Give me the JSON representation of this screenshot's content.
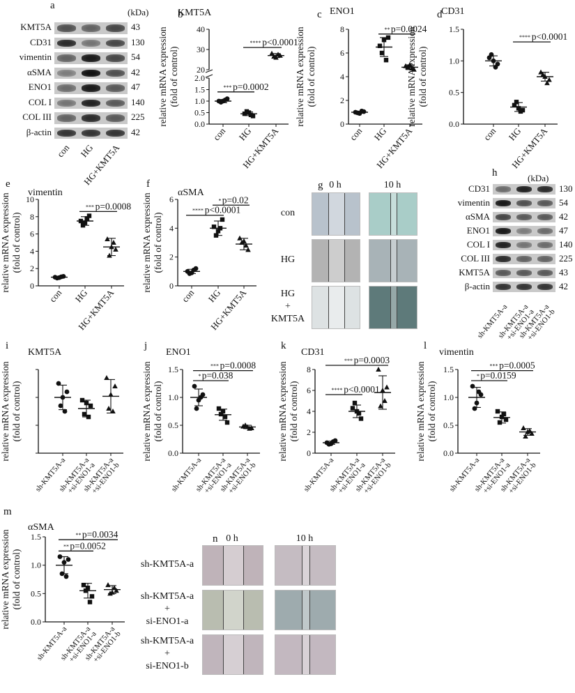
{
  "blot_a": {
    "letter": "a",
    "unit": "(kDa)",
    "lanes": [
      "con",
      "HG",
      "HG+KMT5A"
    ],
    "rows": [
      {
        "label": "KMT5A",
        "kda": "43",
        "lane_intensity": [
          0.55,
          0.45,
          0.6
        ]
      },
      {
        "label": "CD31",
        "kda": "130",
        "lane_intensity": [
          0.75,
          0.35,
          0.6
        ]
      },
      {
        "label": "vimentin",
        "kda": "54",
        "lane_intensity": [
          0.45,
          0.85,
          0.6
        ]
      },
      {
        "label": "αSMA",
        "kda": "42",
        "lane_intensity": [
          0.3,
          0.9,
          0.55
        ]
      },
      {
        "label": "ENO1",
        "kda": "47",
        "lane_intensity": [
          0.4,
          0.85,
          0.5
        ]
      },
      {
        "label": "COL I",
        "kda": "140",
        "lane_intensity": [
          0.35,
          0.8,
          0.5
        ]
      },
      {
        "label": "COL III",
        "kda": "225",
        "lane_intensity": [
          0.45,
          0.75,
          0.5
        ]
      },
      {
        "label": "β-actin",
        "kda": "42",
        "lane_intensity": [
          0.7,
          0.7,
          0.7
        ]
      }
    ]
  },
  "blot_h": {
    "letter": "h",
    "unit": "(kDa)",
    "lanes": [
      "sh-KMT5A-a",
      "sh-KMT5A-a +si-ENO1-a",
      "sh-KMT5A-a +si-ENO1-b"
    ],
    "rows": [
      {
        "label": "CD31",
        "kda": "130",
        "lane_intensity": [
          0.4,
          0.8,
          0.75
        ]
      },
      {
        "label": "vimentin",
        "kda": "54",
        "lane_intensity": [
          0.85,
          0.55,
          0.5
        ]
      },
      {
        "label": "αSMA",
        "kda": "42",
        "lane_intensity": [
          0.6,
          0.5,
          0.5
        ]
      },
      {
        "label": "ENO1",
        "kda": "47",
        "lane_intensity": [
          0.85,
          0.3,
          0.4
        ]
      },
      {
        "label": "COL I",
        "kda": "140",
        "lane_intensity": [
          0.8,
          0.35,
          0.4
        ]
      },
      {
        "label": "COL III",
        "kda": "225",
        "lane_intensity": [
          0.75,
          0.45,
          0.45
        ]
      },
      {
        "label": "KMT5A",
        "kda": "43",
        "lane_intensity": [
          0.5,
          0.5,
          0.5
        ]
      },
      {
        "label": "β-actin",
        "kda": "42",
        "lane_intensity": [
          0.7,
          0.7,
          0.7
        ]
      }
    ]
  },
  "scratch_g": {
    "letter": "g",
    "col_labels": [
      "0 h",
      "10 h"
    ],
    "row_labels": [
      "con",
      "HG",
      "HG\n+\nKMT5A"
    ]
  },
  "scratch_n": {
    "letter": "n",
    "col_labels": [
      "0 h",
      "10 h"
    ],
    "row_labels": [
      "sh-KMT5A-a",
      "sh-KMT5A-a\n+\nsi-ENO1-a",
      "sh-KMT5A-a\n+\nsi-ENO1-b"
    ]
  },
  "chart_data": [
    {
      "id": "b",
      "type": "scatter",
      "title": "KMT5A",
      "ylabel": "relative mRNA expression\n(fold of control)",
      "categories": [
        "con",
        "HG",
        "HG+KMT5A"
      ],
      "broken_axis": true,
      "lower_ylim": [
        0,
        2
      ],
      "lower_ticks": [
        "0.0",
        "0.5",
        "1.0",
        "1.5",
        "2.0"
      ],
      "upper_ylim": [
        20,
        40
      ],
      "upper_ticks": [
        "20",
        "30",
        "40"
      ],
      "series": [
        {
          "marker": "circle",
          "points": [
            1.0,
            1.1,
            0.95,
            1.05,
            1.0
          ],
          "mean": 1.0,
          "sd": 0.07
        },
        {
          "marker": "square",
          "points": [
            0.45,
            0.35,
            0.55,
            0.4,
            0.5
          ],
          "mean": 0.45,
          "sd": 0.08
        },
        {
          "marker": "triangle",
          "points": [
            28.0,
            27.0,
            26.5,
            27.5,
            26.0
          ],
          "mean": 27.0,
          "sd": 1.0
        }
      ],
      "annotations": [
        {
          "from": 0,
          "to": 1,
          "y": 1.4,
          "text": "p=0.0002",
          "stars": "***"
        },
        {
          "from": 1,
          "to": 2,
          "y": 31,
          "text": "p<0.0001",
          "stars": "****"
        }
      ]
    },
    {
      "id": "c",
      "type": "scatter",
      "title": "ENO1",
      "ylabel": "relative mRNA expression\n(fold of control)",
      "categories": [
        "con",
        "HG",
        "HG+KMT5A"
      ],
      "ylim": [
        0,
        8
      ],
      "ticks": [
        "0",
        "2",
        "4",
        "6",
        "8"
      ],
      "series": [
        {
          "marker": "circle",
          "points": [
            1.0,
            1.05,
            0.95,
            1.1,
            0.9
          ],
          "mean": 1.0,
          "sd": 0.08
        },
        {
          "marker": "square",
          "points": [
            6.6,
            7.3,
            6.0,
            5.4,
            7.1
          ],
          "mean": 6.5,
          "sd": 0.8
        },
        {
          "marker": "triangle",
          "points": [
            4.9,
            4.6,
            4.8,
            4.7,
            5.0
          ],
          "mean": 4.8,
          "sd": 0.2
        }
      ],
      "annotations": [
        {
          "from": 1,
          "to": 2,
          "y": 7.6,
          "text": "p=0.0024",
          "stars": "**"
        }
      ]
    },
    {
      "id": "d",
      "type": "scatter",
      "title": "CD31",
      "ylabel": "relative mRNA expression\n(fold of control)",
      "categories": [
        "con",
        "HG",
        "HG+KMT5A"
      ],
      "ylim": [
        0,
        1.5
      ],
      "ticks": [
        "0.0",
        "0.5",
        "1.0",
        "1.5"
      ],
      "series": [
        {
          "marker": "circle",
          "points": [
            1.05,
            0.95,
            1.1,
            0.9,
            1.0
          ],
          "mean": 1.0,
          "sd": 0.08
        },
        {
          "marker": "square",
          "points": [
            0.3,
            0.22,
            0.35,
            0.2,
            0.25
          ],
          "mean": 0.27,
          "sd": 0.07
        },
        {
          "marker": "triangle",
          "points": [
            0.82,
            0.7,
            0.78,
            0.65,
            0.75
          ],
          "mean": 0.75,
          "sd": 0.07
        }
      ],
      "annotations": [
        {
          "from": 1,
          "to": 2,
          "y": 1.3,
          "text": "p<0.0001",
          "stars": "****"
        }
      ]
    },
    {
      "id": "e",
      "type": "scatter",
      "title": "vimentin",
      "ylabel": "relative mRNA expression\n(fold of control)",
      "categories": [
        "con",
        "HG",
        "HG+KMT5A"
      ],
      "ylim": [
        0,
        10
      ],
      "ticks": [
        "0",
        "2",
        "4",
        "6",
        "8",
        "10"
      ],
      "series": [
        {
          "marker": "circle",
          "points": [
            1.0,
            1.1,
            0.9,
            1.05,
            0.95
          ],
          "mean": 1.0,
          "sd": 0.1
        },
        {
          "marker": "square",
          "points": [
            7.5,
            8.1,
            7.0,
            7.8,
            7.3
          ],
          "mean": 7.5,
          "sd": 0.5
        },
        {
          "marker": "triangle",
          "points": [
            5.4,
            4.2,
            3.5,
            5.0,
            4.5
          ],
          "mean": 4.5,
          "sd": 1.0
        }
      ],
      "annotations": [
        {
          "from": 1,
          "to": 2,
          "y": 8.6,
          "text": "p=0.0008",
          "stars": "***"
        }
      ]
    },
    {
      "id": "f",
      "type": "scatter",
      "title": "αSMA",
      "ylabel": "relative mRNA expression\n(fold of control)",
      "categories": [
        "con",
        "HG",
        "HG+KMT5A"
      ],
      "ylim": [
        0,
        6
      ],
      "ticks": [
        "0",
        "2",
        "4",
        "6"
      ],
      "series": [
        {
          "marker": "circle",
          "points": [
            1.0,
            1.2,
            0.85,
            1.1,
            0.9
          ],
          "mean": 1.0,
          "sd": 0.15
        },
        {
          "marker": "square",
          "points": [
            4.1,
            4.6,
            3.5,
            4.0,
            3.8
          ],
          "mean": 4.0,
          "sd": 0.5
        },
        {
          "marker": "triangle",
          "points": [
            3.3,
            2.5,
            3.0,
            2.8,
            3.1
          ],
          "mean": 2.9,
          "sd": 0.4
        }
      ],
      "annotations": [
        {
          "from": 0,
          "to": 1,
          "y": 4.9,
          "text": "p<0.0001",
          "stars": "****"
        },
        {
          "from": 1,
          "to": 2,
          "y": 5.6,
          "text": "p=0.02",
          "stars": "*"
        }
      ]
    },
    {
      "id": "i",
      "type": "scatter",
      "title": "KMT5A",
      "ylabel": "relative mRNA expression\n(fold of control)",
      "categories": [
        "sh-KMT5A-a",
        "sh-KMT5A-a\n+si-ENO1-a",
        "sh-KMT5A-a\n+si-ENO1-b"
      ],
      "ylim": [
        0,
        1.5
      ],
      "ticks": [],
      "series": [
        {
          "marker": "circle",
          "points": [
            1.25,
            1.1,
            0.85,
            0.75,
            1.0
          ],
          "mean": 1.0,
          "sd": 0.22
        },
        {
          "marker": "square",
          "points": [
            0.95,
            0.85,
            0.7,
            0.65,
            0.9
          ],
          "mean": 0.8,
          "sd": 0.15
        },
        {
          "marker": "triangle",
          "points": [
            1.35,
            1.2,
            0.8,
            0.75,
            1.05
          ],
          "mean": 1.02,
          "sd": 0.3
        }
      ],
      "annotations": []
    },
    {
      "id": "j",
      "type": "scatter",
      "title": "ENO1",
      "ylabel": "relative mRNA expression\n(fold of control)",
      "categories": [
        "sh-KMT5A-a",
        "sh-KMT5A-a\n+si-ENO1-a",
        "sh-KMT5A-a\n+si-ENO1-b"
      ],
      "ylim": [
        0,
        1.5
      ],
      "ticks": [
        "0.0",
        "0.5",
        "1.0",
        "1.5"
      ],
      "series": [
        {
          "marker": "circle",
          "points": [
            1.2,
            1.05,
            0.8,
            1.0,
            0.95
          ],
          "mean": 1.0,
          "sd": 0.15
        },
        {
          "marker": "square",
          "points": [
            0.8,
            0.55,
            0.7,
            0.65,
            0.75
          ],
          "mean": 0.69,
          "sd": 0.1
        },
        {
          "marker": "triangle",
          "points": [
            0.48,
            0.45,
            0.5,
            0.44,
            0.47
          ],
          "mean": 0.47,
          "sd": 0.03
        }
      ],
      "annotations": [
        {
          "from": 0,
          "to": 1,
          "y": 1.3,
          "text": "p=0.038",
          "stars": "*"
        },
        {
          "from": 0,
          "to": 2,
          "y": 1.48,
          "text": "p=0.0008",
          "stars": "***"
        }
      ]
    },
    {
      "id": "k",
      "type": "scatter",
      "title": "CD31",
      "ylabel": "relative mRNA expression\n(fold of control)",
      "categories": [
        "sh-KMT5A-a",
        "sh-KMT5A-a\n+si-ENO1-a",
        "sh-KMT5A-a\n+si-ENO1-b"
      ],
      "ylim": [
        0,
        8
      ],
      "ticks": [
        "0",
        "2",
        "4",
        "6",
        "8"
      ],
      "series": [
        {
          "marker": "circle",
          "points": [
            1.0,
            1.2,
            0.85,
            1.1,
            0.9
          ],
          "mean": 1.0,
          "sd": 0.15
        },
        {
          "marker": "square",
          "points": [
            4.3,
            3.3,
            4.8,
            3.8,
            4.0
          ],
          "mean": 4.0,
          "sd": 0.6
        },
        {
          "marker": "triangle",
          "points": [
            8.0,
            6.3,
            4.5,
            5.0,
            6.0
          ],
          "mean": 5.8,
          "sd": 1.6
        }
      ],
      "annotations": [
        {
          "from": 0,
          "to": 1,
          "y": 5.6,
          "text": "p<0.0001",
          "stars": "****"
        },
        {
          "from": 0,
          "to": 2,
          "y": 8.4,
          "text": "p=0.0003",
          "stars": "***"
        }
      ]
    },
    {
      "id": "l",
      "type": "scatter",
      "title": "vimentin",
      "ylabel": "relative mRNA expression\n(fold of control)",
      "categories": [
        "sh-KMT5A-a",
        "sh-KMT5A-a\n+si-ENO1-a",
        "sh-KMT5A-a\n+si-ENO1-b"
      ],
      "ylim": [
        0,
        1.5
      ],
      "ticks": [
        "0.0",
        "0.5",
        "1.0",
        "1.5"
      ],
      "series": [
        {
          "marker": "circle",
          "points": [
            1.2,
            1.05,
            0.8,
            1.1,
            0.9
          ],
          "mean": 1.0,
          "sd": 0.18
        },
        {
          "marker": "square",
          "points": [
            0.75,
            0.6,
            0.55,
            0.7,
            0.65
          ],
          "mean": 0.64,
          "sd": 0.1
        },
        {
          "marker": "triangle",
          "points": [
            0.45,
            0.35,
            0.3,
            0.4,
            0.38
          ],
          "mean": 0.38,
          "sd": 0.06
        }
      ],
      "annotations": [
        {
          "from": 0,
          "to": 1,
          "y": 1.3,
          "text": "p=0.0159",
          "stars": "*"
        },
        {
          "from": 0,
          "to": 2,
          "y": 1.48,
          "text": "p=0.0005",
          "stars": "***"
        }
      ]
    },
    {
      "id": "m",
      "type": "scatter",
      "title": "αSMA",
      "ylabel": "relative mRNA expression\n(fold of control)",
      "categories": [
        "sh-KMT5A-a",
        "sh-KMT5A-a\n+si-ENO1-a",
        "sh-KMT5A-a\n+si-ENO1-b"
      ],
      "ylim": [
        0,
        1.5
      ],
      "ticks": [
        "0.0",
        "0.5",
        "1.0",
        "1.5"
      ],
      "series": [
        {
          "marker": "circle",
          "points": [
            1.15,
            1.1,
            0.85,
            0.8,
            1.05
          ],
          "mean": 1.0,
          "sd": 0.15
        },
        {
          "marker": "square",
          "points": [
            0.65,
            0.45,
            0.55,
            0.35,
            0.6
          ],
          "mean": 0.55,
          "sd": 0.13
        },
        {
          "marker": "triangle",
          "points": [
            0.65,
            0.55,
            0.5,
            0.6,
            0.52
          ],
          "mean": 0.57,
          "sd": 0.07
        }
      ],
      "annotations": [
        {
          "from": 0,
          "to": 1,
          "y": 1.25,
          "text": "p=0.0052",
          "stars": "**"
        },
        {
          "from": 0,
          "to": 2,
          "y": 1.45,
          "text": "p=0.0034",
          "stars": "**"
        }
      ]
    }
  ]
}
